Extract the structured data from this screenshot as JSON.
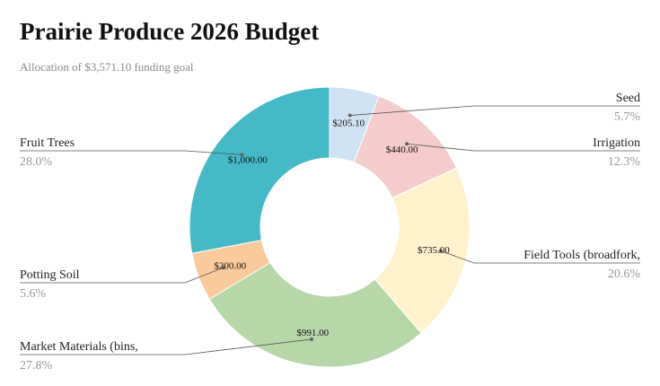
{
  "header": {
    "title": "Prairie Produce 2026 Budget",
    "subtitle": "Allocation of $3,571.10 funding goal"
  },
  "chart_data": {
    "type": "pie",
    "variant": "donut",
    "title": "Prairie Produce 2026 Budget",
    "subtitle": "Allocation of $3,571.10 funding goal",
    "total": 3571.1,
    "slices": [
      {
        "name": "Seed",
        "value": 205.1,
        "value_label": "$205.10",
        "pct_label": "5.7%",
        "color": "#cfe2f3",
        "side": "right"
      },
      {
        "name": "Irrigation",
        "value": 440.0,
        "value_label": "$440.00",
        "pct_label": "12.3%",
        "color": "#f4cccc",
        "side": "right"
      },
      {
        "name": "Field Tools (broadfork,",
        "value": 735.0,
        "value_label": "$735.00",
        "pct_label": "20.6%",
        "color": "#fff2cc",
        "side": "right"
      },
      {
        "name": "Market Materials (bins,",
        "value": 991.0,
        "value_label": "$991.00",
        "pct_label": "27.8%",
        "color": "#b6d7a8",
        "side": "left"
      },
      {
        "name": "Potting Soil",
        "value": 200.0,
        "value_label": "$200.00",
        "pct_label": "5.6%",
        "color": "#f9cb9c",
        "side": "left"
      },
      {
        "name": "Fruit Trees",
        "value": 1000.0,
        "value_label": "$1,000.00",
        "pct_label": "28.0%",
        "color": "#45bac6",
        "side": "left"
      }
    ]
  }
}
